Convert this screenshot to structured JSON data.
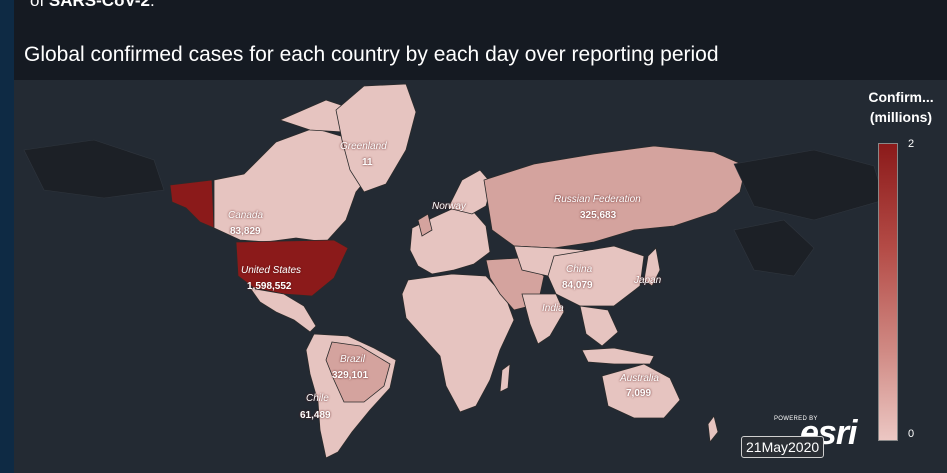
{
  "header": {
    "intro_prefix": "of ",
    "intro_bold": "SARS-CoV-2",
    "intro_suffix": ".",
    "title": "Global confirmed cases for each country by each day over reporting period"
  },
  "legend": {
    "title_line1": "Confirm...",
    "title_line2": "(millions)",
    "max_label": "2",
    "min_label": "0",
    "scale_max": 2,
    "scale_min": 0,
    "color_high": "#8b1a1a",
    "color_low": "#ecc7c3"
  },
  "date": "21May2020",
  "attribution": {
    "powered_by": "POWERED BY",
    "brand": "esri"
  },
  "countries": [
    {
      "name": "Greenland",
      "value": "11"
    },
    {
      "name": "Canada",
      "value": "83,829"
    },
    {
      "name": "United States",
      "value": "1,598,552"
    },
    {
      "name": "Norway",
      "value": ""
    },
    {
      "name": "Russian Federation",
      "value": "325,683"
    },
    {
      "name": "China",
      "value": "84,079"
    },
    {
      "name": "Japan",
      "value": ""
    },
    {
      "name": "India",
      "value": ""
    },
    {
      "name": "Brazil",
      "value": "329,101"
    },
    {
      "name": "Chile",
      "value": "61,489"
    },
    {
      "name": "Australia",
      "value": "7,099"
    }
  ],
  "colors": {
    "background": "#151a22",
    "map_panel": "#232a33",
    "high_case": "#8b1a1a",
    "mid_case": "#c7918b",
    "low_case": "#e6c4c0",
    "no_data": "#1c2026"
  }
}
